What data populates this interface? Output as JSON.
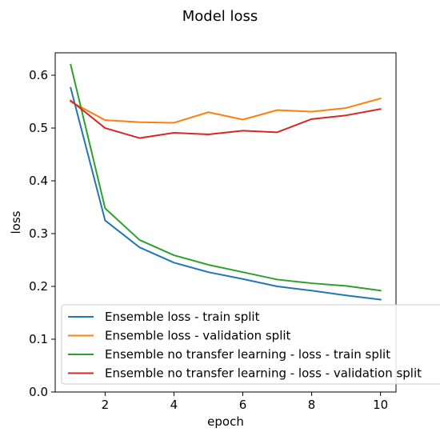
{
  "chart_data": {
    "type": "line",
    "title": "Model loss",
    "xlabel": "epoch",
    "ylabel": "loss",
    "x": [
      1,
      2,
      3,
      4,
      5,
      6,
      7,
      8,
      9,
      10
    ],
    "xlim": [
      0.55,
      10.45
    ],
    "ylim": [
      0.0,
      0.6425
    ],
    "xticks": [
      2,
      4,
      6,
      8,
      10
    ],
    "xtick_labels": [
      "2",
      "4",
      "6",
      "8",
      "10"
    ],
    "yticks": [
      0.0,
      0.1,
      0.2,
      0.3,
      0.4,
      0.5,
      0.6
    ],
    "ytick_labels": [
      "0.0",
      "0.1",
      "0.2",
      "0.3",
      "0.4",
      "0.5",
      "0.6"
    ],
    "grid": false,
    "legend_position": "lower-left",
    "series": [
      {
        "name": "Ensemble loss - train split",
        "color": "#1f77b4",
        "values": [
          0.576,
          0.325,
          0.274,
          0.245,
          0.227,
          0.214,
          0.2,
          0.192,
          0.183,
          0.175
        ]
      },
      {
        "name": "Ensemble loss - validation split",
        "color": "#ff7f0e",
        "values": [
          0.55,
          0.515,
          0.511,
          0.51,
          0.53,
          0.516,
          0.534,
          0.531,
          0.538,
          0.556
        ]
      },
      {
        "name": "Ensemble no transfer learning - loss - train split",
        "color": "#2ca02c",
        "values": [
          0.62,
          0.348,
          0.288,
          0.259,
          0.241,
          0.227,
          0.213,
          0.206,
          0.201,
          0.192
        ]
      },
      {
        "name": "Ensemble no transfer learning - loss - validation split",
        "color": "#d62728",
        "values": [
          0.552,
          0.5,
          0.481,
          0.491,
          0.488,
          0.495,
          0.492,
          0.517,
          0.524,
          0.536
        ]
      }
    ]
  }
}
